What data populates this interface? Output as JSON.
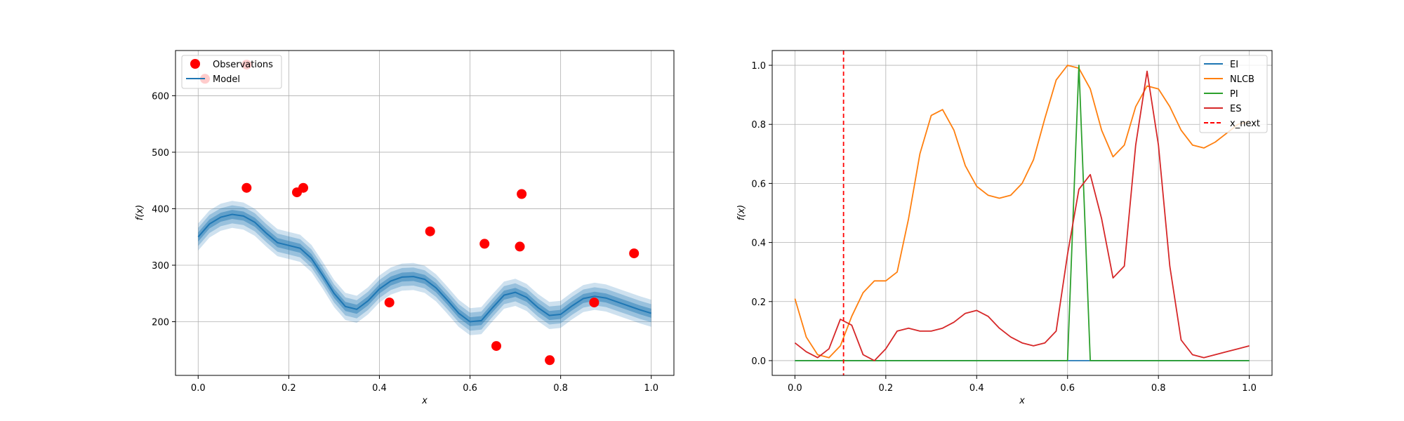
{
  "chart_data": [
    {
      "type": "scatter",
      "xlabel": "x",
      "ylabel": "f(x)",
      "xlim": [
        -0.05,
        1.05
      ],
      "ylim": [
        105,
        680
      ],
      "xticks": [
        "0.0",
        "0.2",
        "0.4",
        "0.6",
        "0.8",
        "1.0"
      ],
      "yticks": [
        "200",
        "300",
        "400",
        "500",
        "600"
      ],
      "grid": true,
      "legend_position": "top-left",
      "legend": [
        "Observations",
        "Model"
      ],
      "colors": {
        "observations": "#ff0000",
        "model": "#1f77b4"
      },
      "observations": {
        "name": "Observations",
        "x": [
          0.015,
          0.107,
          0.218,
          0.232,
          0.422,
          0.512,
          0.632,
          0.71,
          0.714,
          0.658,
          0.776,
          0.874,
          0.962,
          0.107
        ],
        "y": [
          630,
          437,
          429,
          437,
          234,
          360,
          338,
          333,
          426,
          157,
          132,
          234,
          321,
          655
        ]
      },
      "model": {
        "name": "Model",
        "x": [
          0.0,
          0.025,
          0.05,
          0.075,
          0.1,
          0.125,
          0.15,
          0.175,
          0.2,
          0.225,
          0.25,
          0.275,
          0.3,
          0.325,
          0.35,
          0.375,
          0.4,
          0.425,
          0.45,
          0.475,
          0.5,
          0.525,
          0.55,
          0.575,
          0.6,
          0.625,
          0.65,
          0.675,
          0.7,
          0.725,
          0.75,
          0.775,
          0.8,
          0.825,
          0.85,
          0.875,
          0.9,
          0.925,
          0.95,
          0.975,
          1.0
        ],
        "y": [
          350,
          373,
          385,
          390,
          387,
          376,
          357,
          340,
          335,
          330,
          312,
          282,
          250,
          227,
          222,
          237,
          258,
          272,
          279,
          280,
          275,
          260,
          238,
          215,
          200,
          202,
          225,
          247,
          252,
          243,
          225,
          211,
          213,
          228,
          241,
          245,
          242,
          235,
          228,
          221,
          215
        ],
        "band_halfwidths": [
          8,
          16,
          24
        ]
      }
    },
    {
      "type": "line",
      "xlabel": "x",
      "ylabel": "f(x)",
      "xlim": [
        -0.05,
        1.05
      ],
      "ylim": [
        -0.05,
        1.05
      ],
      "xticks": [
        "0.0",
        "0.2",
        "0.4",
        "0.6",
        "0.8",
        "1.0"
      ],
      "yticks": [
        "0.0",
        "0.2",
        "0.4",
        "0.6",
        "0.8",
        "1.0"
      ],
      "grid": true,
      "legend_position": "top-right",
      "legend": [
        "EI",
        "NLCB",
        "PI",
        "ES",
        "x_next"
      ],
      "x": [
        0.0,
        0.025,
        0.05,
        0.075,
        0.1,
        0.125,
        0.15,
        0.175,
        0.2,
        0.225,
        0.25,
        0.275,
        0.3,
        0.325,
        0.35,
        0.375,
        0.4,
        0.425,
        0.45,
        0.475,
        0.5,
        0.525,
        0.55,
        0.575,
        0.6,
        0.625,
        0.65,
        0.675,
        0.7,
        0.725,
        0.75,
        0.775,
        0.8,
        0.825,
        0.85,
        0.875,
        0.9,
        0.925,
        0.95,
        0.975,
        1.0
      ],
      "series": [
        {
          "name": "EI",
          "color": "#1f77b4",
          "values": [
            0,
            0,
            0,
            0,
            0,
            0,
            0,
            0,
            0,
            0,
            0,
            0,
            0,
            0,
            0,
            0,
            0,
            0,
            0,
            0,
            0,
            0,
            0,
            0,
            0,
            0,
            0,
            0,
            0,
            0,
            0,
            0,
            0,
            0,
            0,
            0,
            0,
            0,
            0,
            0,
            0
          ]
        },
        {
          "name": "NLCB",
          "color": "#ff7f0e",
          "values": [
            0.21,
            0.08,
            0.02,
            0.01,
            0.05,
            0.15,
            0.23,
            0.27,
            0.27,
            0.3,
            0.48,
            0.7,
            0.83,
            0.85,
            0.78,
            0.66,
            0.59,
            0.56,
            0.55,
            0.56,
            0.6,
            0.68,
            0.82,
            0.95,
            1.0,
            0.99,
            0.92,
            0.78,
            0.69,
            0.73,
            0.86,
            0.93,
            0.92,
            0.86,
            0.78,
            0.73,
            0.72,
            0.74,
            0.77,
            0.8,
            0.81
          ]
        },
        {
          "name": "PI",
          "color": "#2ca02c",
          "values": [
            0,
            0,
            0,
            0,
            0,
            0,
            0,
            0,
            0,
            0,
            0,
            0,
            0,
            0,
            0,
            0,
            0,
            0,
            0,
            0,
            0,
            0,
            0,
            0,
            0,
            1.0,
            0,
            0,
            0,
            0,
            0,
            0,
            0,
            0,
            0,
            0,
            0,
            0,
            0,
            0,
            0
          ]
        },
        {
          "name": "ES",
          "color": "#d62728",
          "values": [
            0.06,
            0.03,
            0.01,
            0.04,
            0.14,
            0.12,
            0.02,
            0.0,
            0.04,
            0.1,
            0.11,
            0.1,
            0.1,
            0.11,
            0.13,
            0.16,
            0.17,
            0.15,
            0.11,
            0.08,
            0.06,
            0.05,
            0.06,
            0.1,
            0.36,
            0.58,
            0.63,
            0.48,
            0.28,
            0.32,
            0.73,
            0.98,
            0.73,
            0.32,
            0.07,
            0.02,
            0.01,
            0.02,
            0.03,
            0.04,
            0.05
          ]
        }
      ],
      "vlines": [
        {
          "name": "x_next",
          "x": 0.107,
          "color": "#ff0000",
          "style": "dashed"
        }
      ]
    }
  ]
}
